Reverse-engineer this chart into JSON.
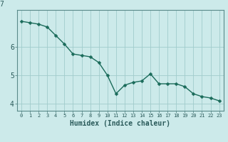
{
  "x": [
    0,
    1,
    2,
    3,
    4,
    5,
    6,
    7,
    8,
    9,
    10,
    11,
    12,
    13,
    14,
    15,
    16,
    17,
    18,
    19,
    20,
    21,
    22,
    23
  ],
  "y": [
    6.9,
    6.85,
    6.8,
    6.7,
    6.4,
    6.1,
    5.75,
    5.7,
    5.65,
    5.45,
    5.0,
    4.35,
    4.65,
    4.75,
    4.8,
    5.05,
    4.7,
    4.7,
    4.7,
    4.6,
    4.35,
    4.25,
    4.2,
    4.1
  ],
  "line_color": "#1a6b5a",
  "marker": "D",
  "marker_size": 2.5,
  "line_width": 1.0,
  "bg_color": "#cceaea",
  "grid_color": "#a0cccc",
  "xlabel": "Humidex (Indice chaleur)",
  "ylim": [
    3.75,
    7.3
  ],
  "xlim": [
    -0.5,
    23.5
  ],
  "yticks": [
    4,
    5,
    6
  ],
  "xtick_labels": [
    "0",
    "1",
    "2",
    "3",
    "4",
    "5",
    "6",
    "7",
    "8",
    "9",
    "10",
    "11",
    "12",
    "13",
    "14",
    "15",
    "16",
    "17",
    "18",
    "19",
    "20",
    "21",
    "22",
    "23"
  ],
  "tick_color": "#2a5a5a",
  "spine_color": "#5a8a8a"
}
